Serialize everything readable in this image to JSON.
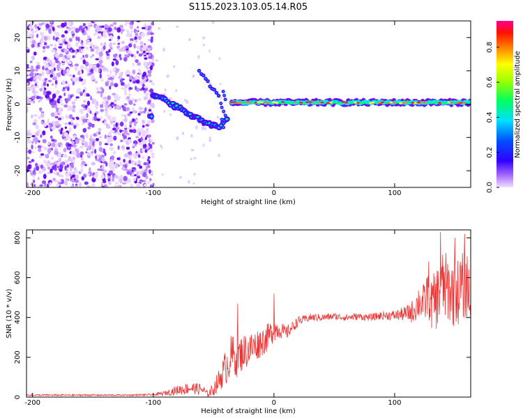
{
  "title": "S115.2023.103.05.14.R05",
  "chart_data": [
    {
      "type": "heatmap",
      "name": "spectrogram",
      "xlabel": "Height of straight line (km)",
      "ylabel": "Frequency (Hz)",
      "xlim": [
        -205,
        163
      ],
      "ylim": [
        -25,
        25
      ],
      "xticks": [
        -200,
        -100,
        0,
        100
      ],
      "yticks": [
        -20,
        -10,
        0,
        10,
        20
      ],
      "colorbar": {
        "label": "Normalized spectral amplitude",
        "range": [
          0,
          0.95
        ],
        "ticks": [
          "0.0",
          "0.2",
          "0.4",
          "0.6",
          "0.8"
        ],
        "colormap": [
          "#e8ccff",
          "#7700ff",
          "#0000ff",
          "#00d0ff",
          "#00ff55",
          "#ffff00",
          "#ff6600",
          "#ff0000",
          "#ff00aa"
        ]
      },
      "features": {
        "noise_region_x": [
          -205,
          -100
        ],
        "signal_line_freq_hz": 0.5,
        "descending_branch": [
          [
            -100,
            3
          ],
          [
            -80,
            -1
          ],
          [
            -60,
            -5
          ],
          [
            -45,
            -7
          ],
          [
            -38,
            -4
          ]
        ],
        "ghost_branch": [
          [
            -62,
            10
          ],
          [
            -45,
            2
          ]
        ],
        "flat_branch_x": [
          -35,
          163
        ]
      }
    },
    {
      "type": "line",
      "name": "snr",
      "xlabel": "Height of straight line (km)",
      "ylabel": "SNR (10 * v/v)",
      "xlim": [
        -205,
        163
      ],
      "ylim": [
        0,
        840
      ],
      "xticks": [
        -200,
        -100,
        0,
        100
      ],
      "yticks": [
        0,
        200,
        400,
        600,
        800
      ],
      "color": "#ee3333",
      "x": [
        -205,
        -120,
        -100,
        -90,
        -80,
        -70,
        -60,
        -55,
        -50,
        -45,
        -40,
        -35,
        -30,
        -25,
        -20,
        -15,
        -10,
        -5,
        0,
        5,
        10,
        15,
        20,
        25,
        30,
        40,
        50,
        60,
        70,
        80,
        90,
        100,
        110,
        115,
        120,
        125,
        128,
        130,
        135,
        140,
        150,
        160,
        163
      ],
      "values": [
        10,
        10,
        12,
        20,
        35,
        45,
        40,
        15,
        40,
        90,
        150,
        210,
        200,
        230,
        240,
        260,
        280,
        300,
        340,
        340,
        320,
        350,
        380,
        390,
        400,
        400,
        405,
        400,
        405,
        400,
        410,
        410,
        420,
        430,
        480,
        470,
        550,
        460,
        500,
        560,
        520,
        570,
        480
      ],
      "noise_amplitude": [
        4,
        4,
        5,
        12,
        25,
        30,
        28,
        15,
        35,
        60,
        90,
        110,
        100,
        90,
        90,
        80,
        75,
        70,
        60,
        45,
        35,
        30,
        25,
        20,
        20,
        18,
        18,
        18,
        18,
        18,
        22,
        25,
        40,
        60,
        90,
        100,
        150,
        130,
        160,
        180,
        170,
        180,
        160
      ],
      "spikes": [
        [
          -30,
          470
        ],
        [
          0,
          520
        ],
        [
          138,
          830
        ],
        [
          150,
          800
        ],
        [
          158,
          820
        ]
      ]
    }
  ]
}
